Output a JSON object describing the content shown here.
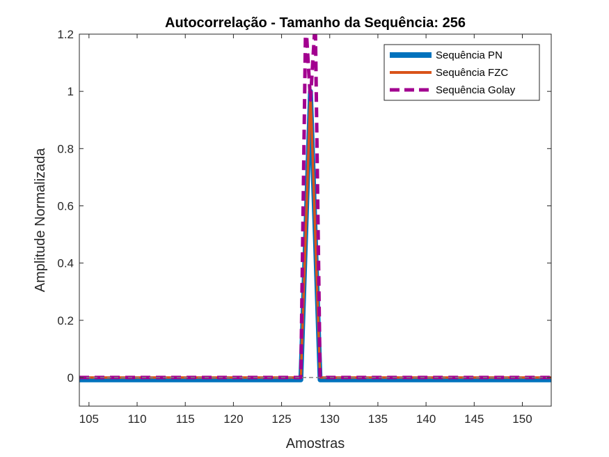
{
  "chart_data": {
    "type": "line",
    "title": "Autocorrelação - Tamanho da Sequência: 256",
    "xlabel": "Amostras",
    "ylabel": "Amplitude Normalizada",
    "xlim": [
      104,
      153
    ],
    "ylim": [
      -0.1,
      1.2
    ],
    "xticks": [
      105,
      110,
      115,
      120,
      125,
      130,
      135,
      140,
      145,
      150
    ],
    "yticks": [
      0,
      0.2,
      0.4,
      0.6,
      0.8,
      1,
      1.2
    ],
    "xtick_labels": [
      "105",
      "110",
      "115",
      "120",
      "125",
      "130",
      "135",
      "140",
      "145",
      "150"
    ],
    "ytick_labels": [
      "0",
      "0.2",
      "0.4",
      "0.6",
      "0.8",
      "1",
      "1.2"
    ],
    "grid": false,
    "legend_position": "top-right",
    "baseline": {
      "y": 0,
      "style": "dashed",
      "color": "#808080"
    },
    "series": [
      {
        "name": "Sequência PN",
        "style": "solid",
        "color": "#0072BD",
        "x": [
          104,
          127,
          128,
          129,
          153
        ],
        "y": [
          -0.008,
          -0.008,
          1.0,
          -0.008,
          -0.008
        ]
      },
      {
        "name": "Sequência FZC",
        "style": "solid",
        "color": "#D95319",
        "x": [
          104,
          127,
          128,
          129,
          153
        ],
        "y": [
          0,
          0,
          1.0,
          0,
          0
        ]
      },
      {
        "name": "Sequência Golay",
        "style": "dashed",
        "color": "#A2008F",
        "x": [
          104,
          127,
          127.5,
          128,
          128.5,
          129,
          153
        ],
        "y": [
          0,
          0,
          1.25,
          0.97,
          1.25,
          0,
          0
        ]
      }
    ]
  }
}
